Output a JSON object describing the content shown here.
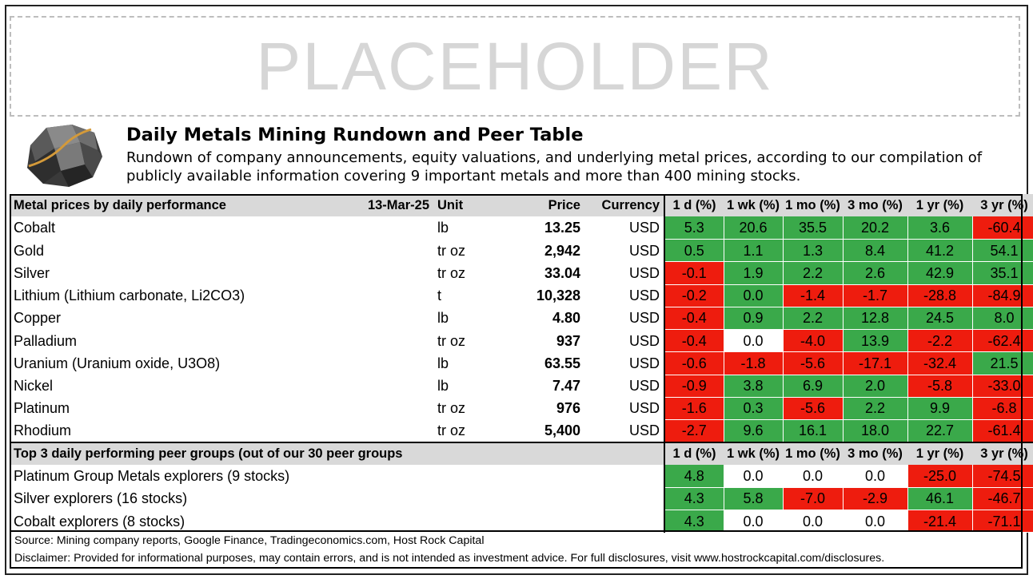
{
  "placeholder_text": "PLACEHOLDER",
  "title": "Daily Metals Mining Rundown and Peer Table",
  "subtitle": "Rundown of company announcements, equity valuations, and underlying metal prices, according to our compilation of publicly available information covering 9 important metals and more than 400 mining stocks.",
  "colors": {
    "green": "#3aa94a",
    "red": "#ee1c0e",
    "white": "#ffffff",
    "header_gray": "#d9d9d9"
  },
  "metals": {
    "header": {
      "label": "Metal prices by daily performance",
      "date": "13-Mar-25",
      "unit": "Unit",
      "price": "Price",
      "currency": "Currency",
      "periods": [
        "1 d (%)",
        "1 wk (%)",
        "1 mo (%)",
        "3 mo (%)",
        "1 yr (%)",
        "3 yr (%)"
      ]
    },
    "rows": [
      {
        "name": "Cobalt",
        "unit": "lb",
        "price": "13.25",
        "currency": "USD",
        "values": [
          "5.3",
          "20.6",
          "35.5",
          "20.2",
          "3.6",
          "-60.4"
        ],
        "colors": [
          "green",
          "green",
          "green",
          "green",
          "green",
          "red"
        ]
      },
      {
        "name": "Gold",
        "unit": "tr oz",
        "price": "2,942",
        "currency": "USD",
        "values": [
          "0.5",
          "1.1",
          "1.3",
          "8.4",
          "41.2",
          "54.1"
        ],
        "colors": [
          "green",
          "green",
          "green",
          "green",
          "green",
          "green"
        ]
      },
      {
        "name": "Silver",
        "unit": "tr oz",
        "price": "33.04",
        "currency": "USD",
        "values": [
          "-0.1",
          "1.9",
          "2.2",
          "2.6",
          "42.9",
          "35.1"
        ],
        "colors": [
          "red",
          "green",
          "green",
          "green",
          "green",
          "green"
        ]
      },
      {
        "name": "Lithium (Lithium carbonate, Li2CO3)",
        "unit": "t",
        "price": "10,328",
        "currency": "USD",
        "values": [
          "-0.2",
          "0.0",
          "-1.4",
          "-1.7",
          "-28.8",
          "-84.9"
        ],
        "colors": [
          "red",
          "green",
          "red",
          "red",
          "red",
          "red"
        ]
      },
      {
        "name": "Copper",
        "unit": "lb",
        "price": "4.80",
        "currency": "USD",
        "values": [
          "-0.4",
          "0.9",
          "2.2",
          "12.8",
          "24.5",
          "8.0"
        ],
        "colors": [
          "red",
          "green",
          "green",
          "green",
          "green",
          "green"
        ]
      },
      {
        "name": "Palladium",
        "unit": "tr oz",
        "price": "937",
        "currency": "USD",
        "values": [
          "-0.4",
          "0.0",
          "-4.0",
          "13.9",
          "-2.2",
          "-62.4"
        ],
        "colors": [
          "red",
          "white",
          "red",
          "green",
          "red",
          "red"
        ]
      },
      {
        "name": "Uranium (Uranium oxide, U3O8)",
        "unit": "lb",
        "price": "63.55",
        "currency": "USD",
        "values": [
          "-0.6",
          "-1.8",
          "-5.6",
          "-17.1",
          "-32.4",
          "21.5"
        ],
        "colors": [
          "red",
          "red",
          "red",
          "red",
          "red",
          "green"
        ]
      },
      {
        "name": "Nickel",
        "unit": "lb",
        "price": "7.47",
        "currency": "USD",
        "values": [
          "-0.9",
          "3.8",
          "6.9",
          "2.0",
          "-5.8",
          "-33.0"
        ],
        "colors": [
          "red",
          "green",
          "green",
          "green",
          "red",
          "red"
        ]
      },
      {
        "name": "Platinum",
        "unit": "tr oz",
        "price": "976",
        "currency": "USD",
        "values": [
          "-1.6",
          "0.3",
          "-5.6",
          "2.2",
          "9.9",
          "-6.8"
        ],
        "colors": [
          "red",
          "green",
          "red",
          "green",
          "green",
          "red"
        ]
      },
      {
        "name": "Rhodium",
        "unit": "tr oz",
        "price": "5,400",
        "currency": "USD",
        "values": [
          "-2.7",
          "9.6",
          "16.1",
          "18.0",
          "22.7",
          "-61.4"
        ],
        "colors": [
          "red",
          "green",
          "green",
          "green",
          "green",
          "red"
        ]
      }
    ]
  },
  "peers": {
    "header": {
      "label": "Top 3 daily performing peer groups (out of our 30 peer groups",
      "periods": [
        "1 d (%)",
        "1 wk (%)",
        "1 mo (%)",
        "3 mo (%)",
        "1 yr (%)",
        "3 yr (%)"
      ]
    },
    "rows": [
      {
        "name": "Platinum Group Metals explorers (9 stocks)",
        "values": [
          "4.8",
          "0.0",
          "0.0",
          "0.0",
          "-25.0",
          "-74.5"
        ],
        "colors": [
          "green",
          "white",
          "white",
          "white",
          "red",
          "red"
        ]
      },
      {
        "name": "Silver explorers (16 stocks)",
        "values": [
          "4.3",
          "5.8",
          "-7.0",
          "-2.9",
          "46.1",
          "-46.7"
        ],
        "colors": [
          "green",
          "green",
          "red",
          "red",
          "green",
          "red"
        ]
      },
      {
        "name": "Cobalt explorers (8 stocks)",
        "values": [
          "4.3",
          "0.0",
          "0.0",
          "0.0",
          "-21.4",
          "-71.1"
        ],
        "colors": [
          "green",
          "white",
          "white",
          "white",
          "red",
          "red"
        ]
      }
    ]
  },
  "footer": {
    "source": "Source: Mining company reports, Google Finance, Tradingeconomics.com, Host Rock Capital",
    "disclaimer": "Disclaimer: Provided for informational purposes, may contain errors, and is not intended as investment advice. For full disclosures, visit www.hostrockcapital.com/disclosures."
  }
}
